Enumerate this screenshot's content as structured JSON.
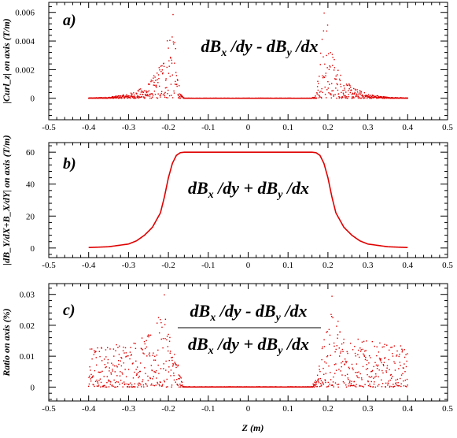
{
  "chart_data": [
    {
      "type": "scatter",
      "panel_label": "a)",
      "annotation": {
        "parts": [
          "dB",
          "x",
          " /dy - dB",
          "y",
          " /dx"
        ]
      },
      "ylabel": "|Curl_z| on axis (T/m)",
      "xlim": [
        -0.5,
        0.5
      ],
      "ylim": [
        -0.0015,
        0.0067
      ],
      "x_ticks": [
        -0.5,
        -0.4,
        -0.3,
        -0.2,
        -0.1,
        0,
        0.1,
        0.2,
        0.3,
        0.4,
        0.5
      ],
      "x_tick_labels": [
        "-0.5",
        "-0.4",
        "-0.3",
        "-0.2",
        "-0.1",
        "0",
        "0.1",
        "0.2",
        "0.3",
        "0.4",
        "0.5"
      ],
      "y_ticks": [
        0,
        0.002,
        0.004,
        0.006
      ],
      "y_tick_labels": [
        "0",
        "0.002",
        "0.004",
        "0.006"
      ],
      "color": "#e00000",
      "series": [
        {
          "values_envelope": {
            "x": [
              -0.4,
              -0.35,
              -0.3,
              -0.26,
              -0.24,
              -0.22,
              -0.21,
              -0.2,
              -0.19,
              -0.18,
              -0.17,
              -0.16,
              0.16,
              0.17,
              0.18,
              0.19,
              0.2,
              0.21,
              0.22,
              0.24,
              0.26,
              0.3,
              0.35,
              0.4
            ],
            "y": [
              2e-05,
              8e-05,
              0.0003,
              0.0008,
              0.0014,
              0.0025,
              0.0035,
              0.0052,
              0.0065,
              0.003,
              0.0003,
              1e-05,
              1e-05,
              0.0003,
              0.003,
              0.0065,
              0.0052,
              0.0035,
              0.0025,
              0.0014,
              0.0008,
              0.0003,
              8e-05,
              2e-05
            ]
          }
        }
      ]
    },
    {
      "type": "line",
      "panel_label": "b)",
      "annotation": {
        "parts": [
          "dB",
          "x",
          " /dy + dB",
          "y",
          " /dx"
        ]
      },
      "ylabel": "|dB_Y/dX+B_X/dY| on axis (T/m)",
      "xlim": [
        -0.5,
        0.5
      ],
      "ylim": [
        -6,
        66
      ],
      "x_ticks": [
        -0.5,
        -0.4,
        -0.3,
        -0.2,
        -0.1,
        0,
        0.1,
        0.2,
        0.3,
        0.4,
        0.5
      ],
      "x_tick_labels": [
        "-0.5",
        "-0.4",
        "-0.3",
        "-0.2",
        "-0.1",
        "0",
        "0.1",
        "0.2",
        "0.3",
        "0.4",
        "0.5"
      ],
      "y_ticks": [
        0,
        20,
        40,
        60
      ],
      "y_tick_labels": [
        "0",
        "20",
        "40",
        "60"
      ],
      "color": "#e00000",
      "series": [
        {
          "x": [
            -0.4,
            -0.35,
            -0.3,
            -0.28,
            -0.26,
            -0.24,
            -0.22,
            -0.21,
            -0.2,
            -0.19,
            -0.18,
            -0.17,
            -0.16,
            0.16,
            0.17,
            0.18,
            0.19,
            0.2,
            0.21,
            0.22,
            0.24,
            0.26,
            0.28,
            0.3,
            0.35,
            0.4
          ],
          "y": [
            0.3,
            0.8,
            2.5,
            4.5,
            8,
            13,
            22,
            32,
            44,
            53,
            58,
            59.7,
            60,
            60,
            59.7,
            58,
            53,
            44,
            32,
            22,
            13,
            8,
            4.5,
            2.5,
            0.8,
            0.3
          ]
        }
      ]
    },
    {
      "type": "scatter",
      "panel_label": "c)",
      "annotation": {
        "numerator": [
          "dB",
          "x",
          " /dy - dB",
          "y",
          " /dx"
        ],
        "denominator": [
          "dB",
          "x",
          " /dy + dB",
          "y",
          " /dx"
        ]
      },
      "ylabel": "Ratio on axis (%)",
      "xlabel": "Z (m)",
      "xlim": [
        -0.5,
        0.5
      ],
      "ylim": [
        -0.0045,
        0.0335
      ],
      "x_ticks": [
        -0.5,
        -0.4,
        -0.3,
        -0.2,
        -0.1,
        0,
        0.1,
        0.2,
        0.3,
        0.4,
        0.5
      ],
      "x_tick_labels": [
        "-0.5",
        "-0.4",
        "-0.3",
        "-0.2",
        "-0.1",
        "0",
        "0.1",
        "0.2",
        "0.3",
        "0.4",
        "0.5"
      ],
      "y_ticks": [
        0,
        0.01,
        0.02,
        0.03
      ],
      "y_tick_labels": [
        "0",
        "0.01",
        "0.02",
        "0.03"
      ],
      "color": "#e00000",
      "series": [
        {
          "values_envelope": {
            "x": [
              -0.4,
              -0.35,
              -0.3,
              -0.25,
              -0.22,
              -0.21,
              -0.2,
              -0.19,
              -0.18,
              -0.17,
              -0.16,
              0.16,
              0.17,
              0.18,
              0.19,
              0.2,
              0.21,
              0.22,
              0.25,
              0.3,
              0.35,
              0.4
            ],
            "y": [
              0.013,
              0.014,
              0.015,
              0.017,
              0.024,
              0.03,
              0.022,
              0.015,
              0.01,
              0.004,
              0.0001,
              0.0001,
              0.004,
              0.01,
              0.015,
              0.022,
              0.03,
              0.024,
              0.017,
              0.015,
              0.014,
              0.013
            ]
          }
        }
      ]
    }
  ]
}
